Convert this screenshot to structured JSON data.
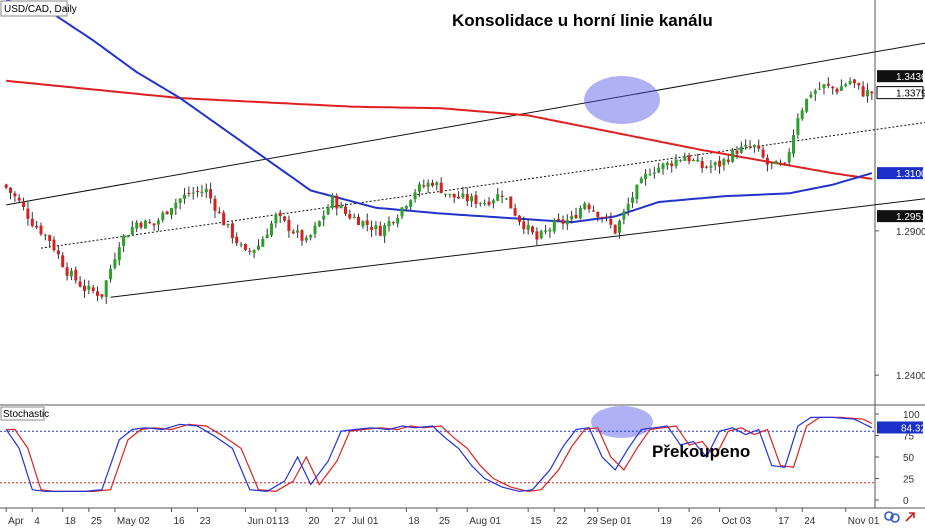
{
  "chart_data": {
    "type": "candlestick",
    "symbol_label": "USD/CAD, Daily",
    "title": "Konsolidace u horní linie kanálu",
    "subchart_title": "Stochastic",
    "subchart_annotation": "Překoupeno",
    "price_axis": {
      "range": [
        1.23,
        1.37
      ],
      "ticks": [
        "1.2900",
        "1.2400"
      ],
      "tags": [
        {
          "value": 1.3436,
          "label": "1.3436",
          "style": "dark"
        },
        {
          "value": 1.3379,
          "label": "1.3379",
          "style": "white"
        },
        {
          "value": 1.31,
          "label": "1.3100",
          "style": "blue"
        },
        {
          "value": 1.2951,
          "label": "1.2951",
          "style": "dark"
        }
      ]
    },
    "stoch_axis": {
      "range": [
        0,
        100
      ],
      "ticks": [
        "100",
        "75",
        "50",
        "25",
        "0"
      ],
      "tag": {
        "value": 84.32,
        "label": "84.32"
      },
      "overbought": 80,
      "oversold": 20
    },
    "x_ticks": [
      "Apr",
      "4",
      "18",
      "25",
      "May 02",
      "16",
      "23",
      "Jun 01",
      "13",
      "20",
      "27",
      "Jul 01",
      "18",
      "25",
      "Aug 01",
      "15",
      "22",
      "29",
      "Sep 01",
      "19",
      "26",
      "Oct 03",
      "17",
      "24",
      "Nov 01"
    ],
    "x_tick_bars": [
      0,
      6,
      13,
      19,
      25,
      38,
      44,
      55,
      62,
      69,
      75,
      79,
      92,
      99,
      106,
      120,
      126,
      133,
      136,
      150,
      157,
      164,
      177,
      183,
      193
    ],
    "num_bars": 200,
    "close_anchors": [
      [
        0,
        1.305
      ],
      [
        3,
        1.3
      ],
      [
        6,
        1.293
      ],
      [
        10,
        1.287
      ],
      [
        14,
        1.276
      ],
      [
        18,
        1.27
      ],
      [
        22,
        1.268
      ],
      [
        26,
        1.286
      ],
      [
        30,
        1.293
      ],
      [
        34,
        1.292
      ],
      [
        38,
        1.299
      ],
      [
        42,
        1.303
      ],
      [
        46,
        1.304
      ],
      [
        50,
        1.293
      ],
      [
        55,
        1.282
      ],
      [
        58,
        1.285
      ],
      [
        62,
        1.295
      ],
      [
        66,
        1.29
      ],
      [
        69,
        1.286
      ],
      [
        72,
        1.293
      ],
      [
        75,
        1.301
      ],
      [
        78,
        1.296
      ],
      [
        82,
        1.293
      ],
      [
        86,
        1.29
      ],
      [
        90,
        1.296
      ],
      [
        94,
        1.304
      ],
      [
        98,
        1.307
      ],
      [
        102,
        1.302
      ],
      [
        106,
        1.301
      ],
      [
        110,
        1.3
      ],
      [
        114,
        1.303
      ],
      [
        118,
        1.294
      ],
      [
        122,
        1.287
      ],
      [
        126,
        1.292
      ],
      [
        130,
        1.294
      ],
      [
        133,
        1.3
      ],
      [
        137,
        1.295
      ],
      [
        140,
        1.29
      ],
      [
        144,
        1.302
      ],
      [
        148,
        1.311
      ],
      [
        152,
        1.313
      ],
      [
        156,
        1.316
      ],
      [
        160,
        1.312
      ],
      [
        164,
        1.313
      ],
      [
        168,
        1.318
      ],
      [
        172,
        1.319
      ],
      [
        175,
        1.313
      ],
      [
        179,
        1.312
      ],
      [
        182,
        1.33
      ],
      [
        185,
        1.338
      ],
      [
        188,
        1.34
      ],
      [
        191,
        1.339
      ],
      [
        194,
        1.342
      ],
      [
        197,
        1.3379
      ],
      [
        199,
        1.3379
      ]
    ],
    "sma_red_anchors": [
      [
        0,
        1.342
      ],
      [
        20,
        1.339
      ],
      [
        40,
        1.336
      ],
      [
        60,
        1.3345
      ],
      [
        80,
        1.333
      ],
      [
        100,
        1.3325
      ],
      [
        120,
        1.33
      ],
      [
        140,
        1.324
      ],
      [
        160,
        1.318
      ],
      [
        175,
        1.314
      ],
      [
        190,
        1.31
      ],
      [
        199,
        1.308
      ]
    ],
    "sma_blue_anchors": [
      [
        0,
        1.37
      ],
      [
        10,
        1.366
      ],
      [
        20,
        1.356
      ],
      [
        30,
        1.345
      ],
      [
        40,
        1.336
      ],
      [
        55,
        1.32
      ],
      [
        70,
        1.304
      ],
      [
        85,
        1.298
      ],
      [
        100,
        1.296
      ],
      [
        115,
        1.2945
      ],
      [
        130,
        1.293
      ],
      [
        140,
        1.295
      ],
      [
        150,
        1.3
      ],
      [
        165,
        1.302
      ],
      [
        180,
        1.303
      ],
      [
        190,
        1.306
      ],
      [
        199,
        1.31
      ]
    ],
    "channel_upper": [
      [
        0,
        1.299
      ],
      [
        260,
        1.368
      ]
    ],
    "channel_middle": [
      [
        8,
        1.284
      ],
      [
        260,
        1.338
      ]
    ],
    "channel_lower": [
      [
        24,
        1.267
      ],
      [
        260,
        1.31
      ]
    ],
    "stoch_k_anchors": [
      [
        0,
        82
      ],
      [
        3,
        60
      ],
      [
        6,
        12
      ],
      [
        9,
        10
      ],
      [
        14,
        10
      ],
      [
        18,
        10
      ],
      [
        22,
        12
      ],
      [
        26,
        70
      ],
      [
        29,
        82
      ],
      [
        32,
        84
      ],
      [
        36,
        82
      ],
      [
        40,
        88
      ],
      [
        44,
        86
      ],
      [
        48,
        74
      ],
      [
        52,
        60
      ],
      [
        56,
        12
      ],
      [
        60,
        10
      ],
      [
        64,
        22
      ],
      [
        67,
        50
      ],
      [
        70,
        18
      ],
      [
        74,
        45
      ],
      [
        77,
        80
      ],
      [
        80,
        82
      ],
      [
        84,
        84
      ],
      [
        88,
        82
      ],
      [
        91,
        86
      ],
      [
        94,
        84
      ],
      [
        98,
        86
      ],
      [
        101,
        72
      ],
      [
        104,
        60
      ],
      [
        107,
        40
      ],
      [
        110,
        25
      ],
      [
        114,
        15
      ],
      [
        118,
        10
      ],
      [
        121,
        12
      ],
      [
        125,
        35
      ],
      [
        128,
        62
      ],
      [
        131,
        82
      ],
      [
        134,
        84
      ],
      [
        137,
        50
      ],
      [
        140,
        35
      ],
      [
        143,
        60
      ],
      [
        146,
        82
      ],
      [
        149,
        84
      ],
      [
        152,
        86
      ],
      [
        155,
        64
      ],
      [
        158,
        68
      ],
      [
        161,
        50
      ],
      [
        164,
        80
      ],
      [
        167,
        84
      ],
      [
        170,
        76
      ],
      [
        173,
        82
      ],
      [
        176,
        40
      ],
      [
        179,
        38
      ],
      [
        182,
        86
      ],
      [
        185,
        96
      ],
      [
        190,
        96
      ],
      [
        195,
        94
      ],
      [
        199,
        84
      ]
    ]
  }
}
